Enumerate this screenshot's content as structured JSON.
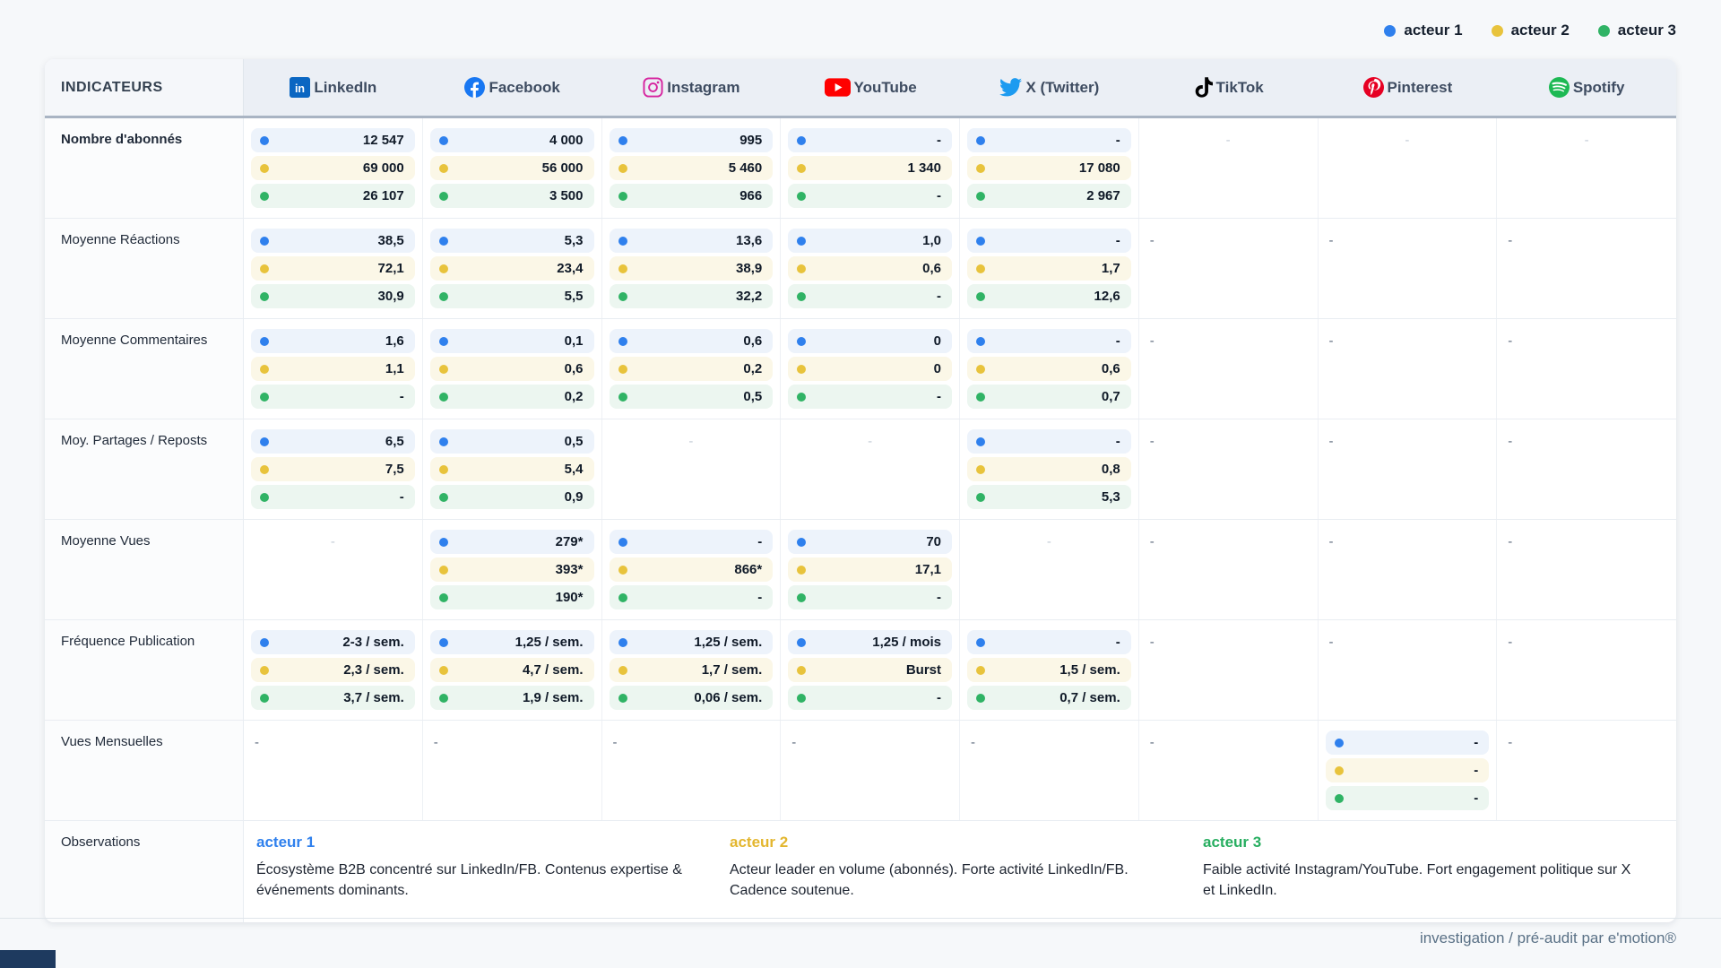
{
  "legend": {
    "items": [
      {
        "label": "acteur 1",
        "color": "#2f80ed"
      },
      {
        "label": "acteur 2",
        "color": "#e8c33c"
      },
      {
        "label": "acteur 3",
        "color": "#30b365"
      }
    ]
  },
  "header": {
    "indicators_label": "INDICATEURS",
    "platforms": [
      {
        "name": "LinkedIn",
        "icon": "linkedin-icon",
        "brand_color": "#0a66c2"
      },
      {
        "name": "Facebook",
        "icon": "facebook-icon",
        "brand_color": "#1877f2"
      },
      {
        "name": "Instagram",
        "icon": "instagram-icon",
        "brand_color": "#d6249f"
      },
      {
        "name": "YouTube",
        "icon": "youtube-icon",
        "brand_color": "#ff0000"
      },
      {
        "name": "X (Twitter)",
        "icon": "twitter-icon",
        "brand_color": "#1d9bf0"
      },
      {
        "name": "TikTok",
        "icon": "tiktok-icon",
        "brand_color": "#010101"
      },
      {
        "name": "Pinterest",
        "icon": "pinterest-icon",
        "brand_color": "#e60023"
      },
      {
        "name": "Spotify",
        "icon": "spotify-icon",
        "brand_color": "#1db954"
      }
    ]
  },
  "table": {
    "dash_char": "-",
    "rows": [
      {
        "label": "Nombre d'abonnés",
        "bold": true,
        "cells": [
          {
            "t": "pills",
            "v": [
              "12 547",
              "69 000",
              "26 107"
            ]
          },
          {
            "t": "pills",
            "v": [
              "4 000",
              "56 000",
              "3 500"
            ]
          },
          {
            "t": "pills",
            "v": [
              "995",
              "5 460",
              "966"
            ]
          },
          {
            "t": "pills",
            "v": [
              "-",
              "1 340",
              "-"
            ]
          },
          {
            "t": "pills",
            "v": [
              "-",
              "17 080",
              "2 967"
            ]
          },
          {
            "t": "dash",
            "align": "center"
          },
          {
            "t": "dash",
            "align": "center"
          },
          {
            "t": "dash",
            "align": "center"
          }
        ]
      },
      {
        "label": "Moyenne Réactions",
        "bold": false,
        "cells": [
          {
            "t": "pills",
            "v": [
              "38,5",
              "72,1",
              "30,9"
            ]
          },
          {
            "t": "pills",
            "v": [
              "5,3",
              "23,4",
              "5,5"
            ]
          },
          {
            "t": "pills",
            "v": [
              "13,6",
              "38,9",
              "32,2"
            ]
          },
          {
            "t": "pills",
            "v": [
              "1,0",
              "0,6",
              "-"
            ]
          },
          {
            "t": "pills",
            "v": [
              "-",
              "1,7",
              "12,6"
            ]
          },
          {
            "t": "dash",
            "align": "left"
          },
          {
            "t": "dash",
            "align": "left"
          },
          {
            "t": "dash",
            "align": "left"
          }
        ]
      },
      {
        "label": "Moyenne Commentaires",
        "bold": false,
        "cells": [
          {
            "t": "pills",
            "v": [
              "1,6",
              "1,1",
              "-"
            ]
          },
          {
            "t": "pills",
            "v": [
              "0,1",
              "0,6",
              "0,2"
            ]
          },
          {
            "t": "pills",
            "v": [
              "0,6",
              "0,2",
              "0,5"
            ]
          },
          {
            "t": "pills",
            "v": [
              "0",
              "0",
              "-"
            ]
          },
          {
            "t": "pills",
            "v": [
              "-",
              "0,6",
              "0,7"
            ]
          },
          {
            "t": "dash",
            "align": "left"
          },
          {
            "t": "dash",
            "align": "left"
          },
          {
            "t": "dash",
            "align": "left"
          }
        ]
      },
      {
        "label": "Moy. Partages / Reposts",
        "bold": false,
        "cells": [
          {
            "t": "pills",
            "v": [
              "6,5",
              "7,5",
              "-"
            ]
          },
          {
            "t": "pills",
            "v": [
              "0,5",
              "5,4",
              "0,9"
            ]
          },
          {
            "t": "dash",
            "align": "center"
          },
          {
            "t": "dash",
            "align": "center"
          },
          {
            "t": "pills",
            "v": [
              "-",
              "0,8",
              "5,3"
            ]
          },
          {
            "t": "dash",
            "align": "left"
          },
          {
            "t": "dash",
            "align": "left"
          },
          {
            "t": "dash",
            "align": "left"
          }
        ]
      },
      {
        "label": "Moyenne Vues",
        "bold": false,
        "cells": [
          {
            "t": "dash",
            "align": "center"
          },
          {
            "t": "pills",
            "v": [
              "279*",
              "393*",
              "190*"
            ]
          },
          {
            "t": "pills",
            "v": [
              "-",
              "866*",
              "-"
            ]
          },
          {
            "t": "pills",
            "v": [
              "70",
              "17,1",
              "-"
            ]
          },
          {
            "t": "dash",
            "align": "center"
          },
          {
            "t": "dash",
            "align": "left"
          },
          {
            "t": "dash",
            "align": "left"
          },
          {
            "t": "dash",
            "align": "left"
          }
        ]
      },
      {
        "label": "Fréquence Publication",
        "bold": false,
        "cells": [
          {
            "t": "pills",
            "v": [
              "2-3 / sem.",
              "2,3 / sem.",
              "3,7 / sem."
            ]
          },
          {
            "t": "pills",
            "v": [
              "1,25 / sem.",
              "4,7 / sem.",
              "1,9 / sem."
            ]
          },
          {
            "t": "pills",
            "v": [
              "1,25 / sem.",
              "1,7 / sem.",
              "0,06 / sem."
            ]
          },
          {
            "t": "pills",
            "v": [
              "1,25 / mois",
              "Burst",
              "-"
            ]
          },
          {
            "t": "pills",
            "v": [
              "-",
              "1,5 / sem.",
              "0,7 / sem."
            ]
          },
          {
            "t": "dash",
            "align": "left"
          },
          {
            "t": "dash",
            "align": "left"
          },
          {
            "t": "dash",
            "align": "left"
          }
        ]
      },
      {
        "label": "Vues Mensuelles",
        "bold": false,
        "cells": [
          {
            "t": "dash",
            "align": "left"
          },
          {
            "t": "dash",
            "align": "left"
          },
          {
            "t": "dash",
            "align": "left"
          },
          {
            "t": "dash",
            "align": "left"
          },
          {
            "t": "dash",
            "align": "left"
          },
          {
            "t": "dash",
            "align": "left"
          },
          {
            "t": "pills",
            "v": [
              "-",
              "-",
              "-"
            ]
          },
          {
            "t": "dash",
            "align": "left"
          }
        ]
      }
    ]
  },
  "observations": {
    "label": "Observations",
    "items": [
      {
        "title": "acteur 1",
        "color": "#2f80ed",
        "text": "Écosystème B2B concentré sur LinkedIn/FB. Contenus expertise & événements dominants."
      },
      {
        "title": "acteur 2",
        "color": "#e3b62e",
        "text": "Acteur leader en volume (abonnés). Forte activité LinkedIn/FB. Cadence soutenue."
      },
      {
        "title": "acteur 3",
        "color": "#27ae60",
        "text": "Faible activité Instagram/YouTube. Fort engagement politique sur X et LinkedIn."
      }
    ]
  },
  "footer": {
    "text": "investigation / pré-audit par e'motion®"
  }
}
